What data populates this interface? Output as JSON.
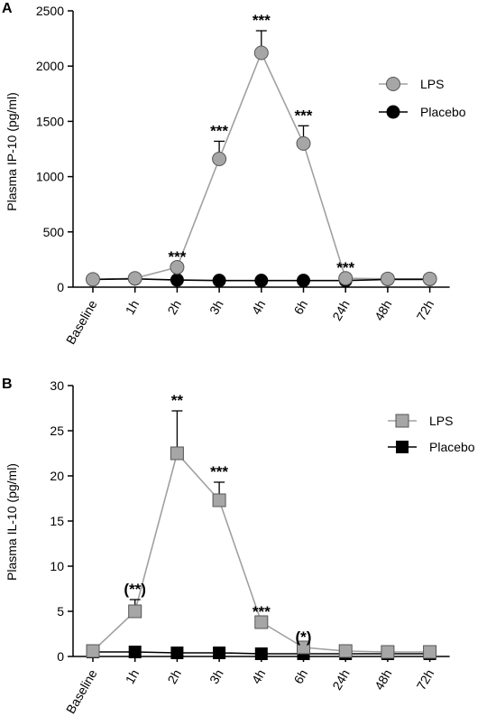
{
  "figure": {
    "panels": [
      "A",
      "B"
    ]
  },
  "colors": {
    "lps_fill": "#a6a6a6",
    "placebo_fill": "#000000",
    "axis": "#000000",
    "connector": "#a0a0a0",
    "placebo_line": "#000000"
  },
  "chart_data": [
    {
      "panel_label": "A",
      "type": "line",
      "title": "",
      "xlabel": "",
      "ylabel": "Plasma IP-10 (pg/ml)",
      "ylim": [
        0,
        2500
      ],
      "yticks": [
        0,
        500,
        1000,
        1500,
        2000,
        2500
      ],
      "categories": [
        "Baseline",
        "1h",
        "2h",
        "3h",
        "4h",
        "6h",
        "24h",
        "48h",
        "72h"
      ],
      "marker": "circle",
      "legend_position": "right",
      "grid": false,
      "series": [
        {
          "name": "LPS",
          "values": [
            70,
            80,
            180,
            1160,
            2120,
            1300,
            80,
            75,
            75
          ],
          "error_up": [
            0,
            0,
            0,
            160,
            200,
            160,
            0,
            0,
            0
          ],
          "significance": [
            "",
            "",
            "***",
            "***",
            "***",
            "***",
            "***",
            "",
            ""
          ]
        },
        {
          "name": "Placebo",
          "values": [
            70,
            75,
            65,
            60,
            60,
            60,
            60,
            70,
            70
          ],
          "error_up": [
            0,
            0,
            0,
            0,
            0,
            0,
            0,
            0,
            0
          ]
        }
      ]
    },
    {
      "panel_label": "B",
      "type": "line",
      "title": "",
      "xlabel": "",
      "ylabel": "Plasma IL-10 (pg/ml)",
      "ylim": [
        0,
        30
      ],
      "yticks": [
        0,
        5,
        10,
        15,
        20,
        25,
        30
      ],
      "categories": [
        "Baseline",
        "1h",
        "2h",
        "3h",
        "4h",
        "6h",
        "24h",
        "48h",
        "72h"
      ],
      "marker": "square",
      "legend_position": "right",
      "grid": false,
      "series": [
        {
          "name": "LPS",
          "values": [
            0.6,
            5.0,
            22.5,
            17.3,
            3.8,
            1.0,
            0.6,
            0.5,
            0.5
          ],
          "error_up": [
            0,
            1.3,
            4.7,
            2.0,
            0,
            0,
            0,
            0,
            0
          ],
          "significance": [
            "",
            "(**)",
            "**",
            "***",
            "***",
            "(*)",
            "",
            "",
            ""
          ]
        },
        {
          "name": "Placebo",
          "values": [
            0.5,
            0.5,
            0.4,
            0.4,
            0.3,
            0.3,
            0.3,
            0.3,
            0.3
          ],
          "error_up": [
            0,
            0,
            0,
            0,
            0,
            0,
            0,
            0,
            0
          ]
        }
      ]
    }
  ]
}
